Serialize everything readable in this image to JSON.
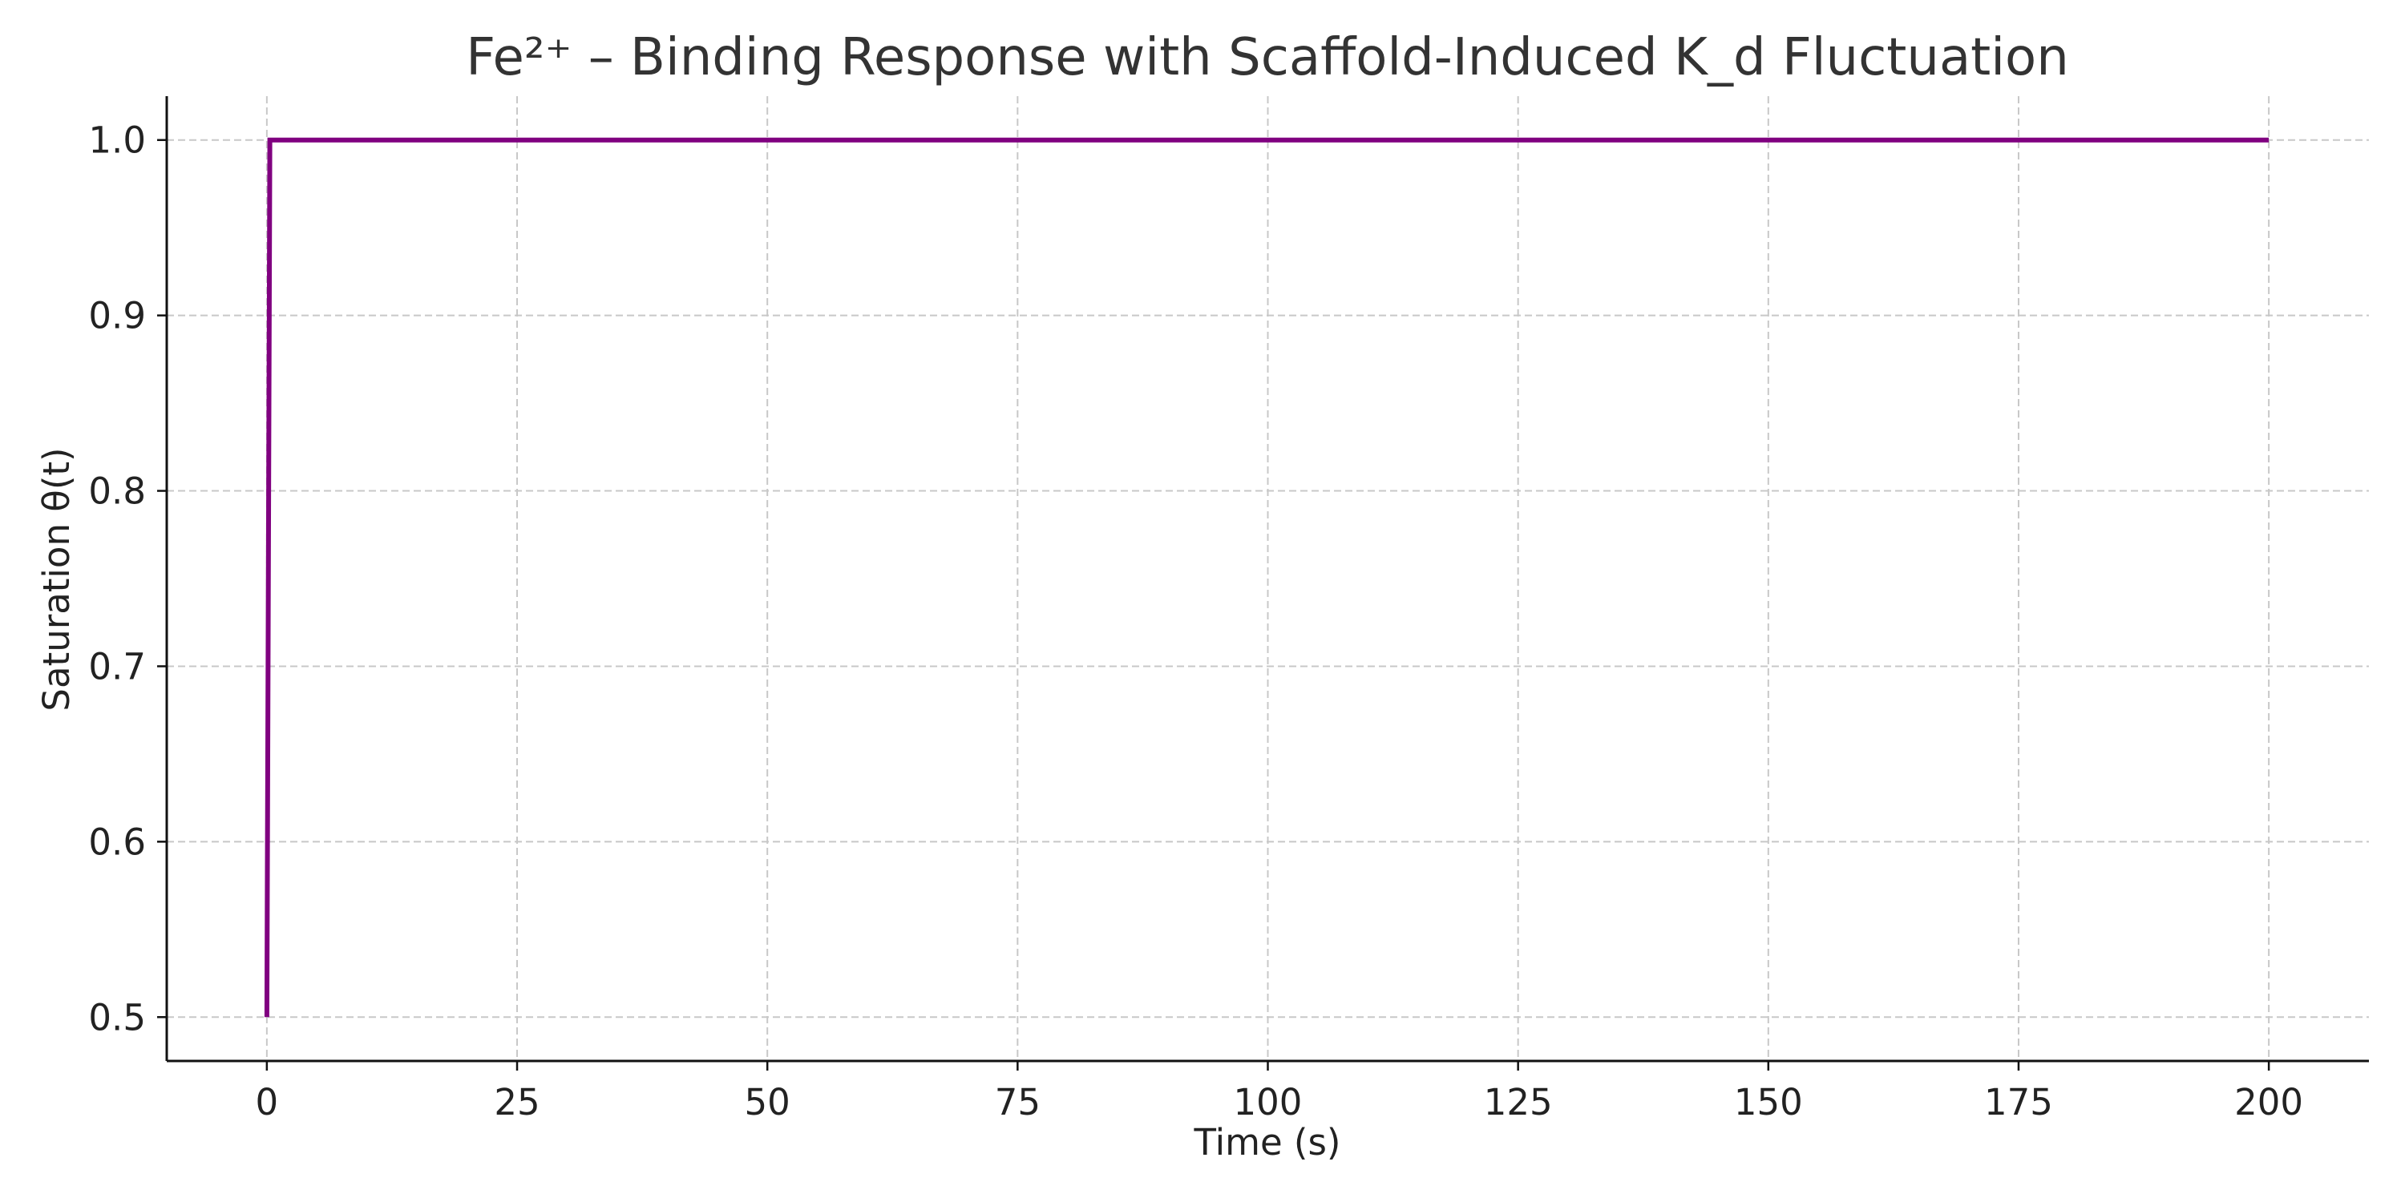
{
  "chart_data": {
    "type": "line",
    "title": "Fe²⁺ – Binding Response with Scaffold-Induced K_d Fluctuation",
    "xlabel": "Time (s)",
    "ylabel": "Saturation θ(t)",
    "xlim": [
      -10,
      210
    ],
    "ylim": [
      0.475,
      1.025
    ],
    "xticks": [
      0,
      25,
      50,
      75,
      100,
      125,
      150,
      175,
      200
    ],
    "yticks": [
      0.5,
      0.6,
      0.7,
      0.8,
      0.9,
      1.0
    ],
    "xtick_labels": [
      "0",
      "25",
      "50",
      "75",
      "100",
      "125",
      "150",
      "175",
      "200"
    ],
    "ytick_labels": [
      "0.5",
      "0.6",
      "0.7",
      "0.8",
      "0.9",
      "1.0"
    ],
    "grid": true,
    "series": [
      {
        "color": "#800080",
        "x": [
          0,
          0.3,
          200
        ],
        "y": [
          0.5,
          1.0,
          1.0
        ]
      }
    ]
  }
}
